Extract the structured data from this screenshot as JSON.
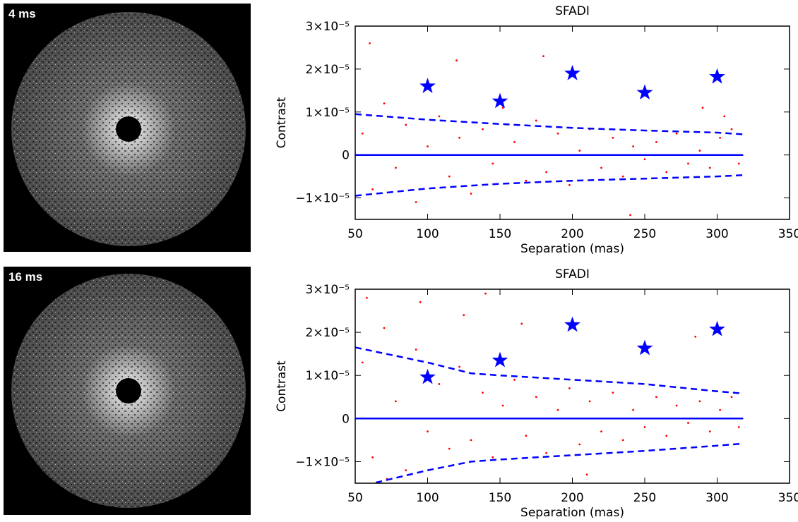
{
  "images": [
    {
      "label": "4 ms"
    },
    {
      "label": "16 ms"
    }
  ],
  "chart_data": [
    {
      "type": "scatter",
      "title": "SFADI",
      "x_label": "Separation (mas)",
      "y_label": "Contrast",
      "xlim": [
        50,
        350
      ],
      "xticks": [
        50,
        100,
        150,
        200,
        250,
        300,
        350
      ],
      "ylim": [
        -1.5e-05,
        3e-05
      ],
      "yticks": [
        {
          "value": -1e-05,
          "label": "−1×10⁻⁵"
        },
        0,
        {
          "value": 1e-05,
          "label": "1×10⁻⁵"
        },
        {
          "value": 2e-05,
          "label": "2×10⁻⁵"
        },
        {
          "value": 3e-05,
          "label": "3×10⁻⁵"
        }
      ],
      "series": [
        {
          "color": "#ff0000",
          "marker": "dot",
          "x": [
            55,
            62,
            70,
            78,
            85,
            92,
            100,
            108,
            115,
            122,
            130,
            138,
            145,
            152,
            160,
            168,
            175,
            182,
            190,
            198,
            205,
            212,
            220,
            228,
            235,
            242,
            250,
            258,
            265,
            272,
            280,
            288,
            295,
            302,
            310,
            315,
            60,
            120,
            180,
            240,
            290,
            305
          ],
          "values": [
            5e-06,
            -8e-06,
            1.2e-05,
            -3e-06,
            7e-06,
            -1.1e-05,
            2e-06,
            9e-06,
            -5e-06,
            4e-06,
            -9e-06,
            6e-06,
            -2e-06,
            1.1e-05,
            3e-06,
            -6e-06,
            8e-06,
            -4e-06,
            5e-06,
            -7e-06,
            1e-06,
            6e-06,
            -3e-06,
            4e-06,
            -5e-06,
            2e-06,
            -1e-06,
            3e-06,
            -4e-06,
            5e-06,
            -2e-06,
            1e-06,
            -3e-06,
            4e-06,
            6e-06,
            -2e-06,
            2.6e-05,
            2.2e-05,
            2.3e-05,
            -1.4e-05,
            1.1e-05,
            9e-06
          ]
        },
        {
          "color": "#0000ff",
          "line": "dashed",
          "x": [
            50,
            100,
            150,
            200,
            250,
            300,
            318
          ],
          "values": [
            9.5e-06,
            8.2e-06,
            7.2e-06,
            6.3e-06,
            5.7e-06,
            5.2e-06,
            4.8e-06
          ]
        },
        {
          "color": "#0000ff",
          "line": "dashed",
          "x": [
            50,
            100,
            150,
            200,
            250,
            300,
            318
          ],
          "values": [
            -9.5e-06,
            -7.8e-06,
            -6.7e-06,
            -6e-06,
            -5.5e-06,
            -5e-06,
            -4.7e-06
          ]
        },
        {
          "color": "#0000ff",
          "line": "solid",
          "x": [
            50,
            318
          ],
          "values": [
            0,
            0
          ]
        },
        {
          "color": "#0000ff",
          "marker": "star",
          "x": [
            100,
            150,
            200,
            250,
            300
          ],
          "values": [
            1.6e-05,
            1.25e-05,
            1.9e-05,
            1.45e-05,
            1.82e-05
          ]
        }
      ]
    },
    {
      "type": "scatter",
      "title": "SFADI",
      "x_label": "Separation (mas)",
      "y_label": "Contrast",
      "xlim": [
        50,
        350
      ],
      "xticks": [
        50,
        100,
        150,
        200,
        250,
        300,
        350
      ],
      "ylim": [
        -1.5e-05,
        3e-05
      ],
      "yticks": [
        {
          "value": -1e-05,
          "label": "−1×10⁻⁵"
        },
        0,
        {
          "value": 1e-05,
          "label": "1×10⁻⁵"
        },
        {
          "value": 2e-05,
          "label": "2×10⁻⁵"
        },
        {
          "value": 3e-05,
          "label": "3×10⁻⁵"
        }
      ],
      "series": [
        {
          "color": "#ff0000",
          "marker": "dot",
          "x": [
            55,
            62,
            70,
            78,
            85,
            92,
            100,
            108,
            115,
            122,
            130,
            138,
            145,
            152,
            160,
            168,
            175,
            182,
            190,
            198,
            205,
            212,
            220,
            228,
            235,
            242,
            250,
            258,
            265,
            272,
            280,
            288,
            295,
            302,
            310,
            315,
            58,
            95,
            125,
            165,
            210,
            285,
            72,
            140
          ],
          "values": [
            1.3e-05,
            -9e-06,
            2.1e-05,
            4e-06,
            -1.2e-05,
            1.6e-05,
            -3e-06,
            8e-06,
            -7e-06,
            1.2e-05,
            -5e-06,
            6e-06,
            -9e-06,
            3e-06,
            9e-06,
            -4e-06,
            5e-06,
            -8e-06,
            2e-06,
            7e-06,
            -6e-06,
            4e-06,
            -3e-06,
            6e-06,
            -5e-06,
            2e-06,
            -2e-06,
            5e-06,
            -4e-06,
            3e-06,
            -1e-06,
            4e-06,
            -3e-06,
            2e-06,
            5e-06,
            -2e-06,
            2.8e-05,
            2.7e-05,
            2.4e-05,
            2.2e-05,
            -1.3e-05,
            1.9e-05,
            -1.4e-05,
            2.9e-05
          ]
        },
        {
          "color": "#0000ff",
          "line": "dashed",
          "x": [
            50,
            100,
            130,
            150,
            200,
            250,
            300,
            318
          ],
          "values": [
            1.65e-05,
            1.3e-05,
            1.05e-05,
            1e-05,
            9e-06,
            8e-06,
            6.3e-06,
            5.8e-06
          ]
        },
        {
          "color": "#0000ff",
          "line": "dashed",
          "x": [
            50,
            100,
            130,
            150,
            200,
            250,
            300,
            318
          ],
          "values": [
            -1.6e-05,
            -1.2e-05,
            -1e-05,
            -9.5e-06,
            -8.5e-06,
            -7.5e-06,
            -6.3e-06,
            -5.8e-06
          ]
        },
        {
          "color": "#0000ff",
          "line": "solid",
          "x": [
            50,
            318
          ],
          "values": [
            0,
            0
          ]
        },
        {
          "color": "#0000ff",
          "marker": "star",
          "x": [
            100,
            150,
            200,
            250,
            300
          ],
          "values": [
            9.6e-06,
            1.35e-05,
            2.17e-05,
            1.63e-05,
            2.07e-05
          ]
        }
      ]
    }
  ]
}
